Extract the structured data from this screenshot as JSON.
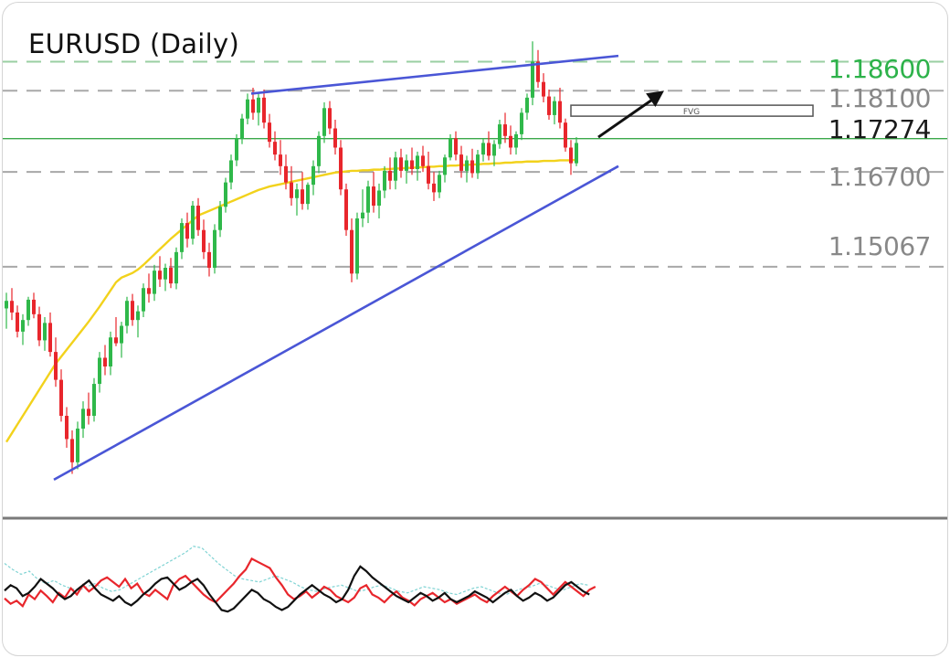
{
  "chart_data": {
    "type": "candlestick",
    "title": "EURUSD (Daily)",
    "price_range": [
      1.108,
      1.193
    ],
    "levels": [
      {
        "value": 1.186,
        "label": "1.18600",
        "color": "#2db24a",
        "style": "dashed"
      },
      {
        "value": 1.181,
        "label": "1.18100",
        "color": "#888888",
        "style": "dashed"
      },
      {
        "value": 1.17274,
        "label": "1.17274",
        "color": "#1a1a1a",
        "style": "solid"
      },
      {
        "value": 1.167,
        "label": "1.16700",
        "color": "#888888",
        "style": "dashed"
      },
      {
        "value": 1.15067,
        "label": "1.15067",
        "color": "#888888",
        "style": "dashed"
      }
    ],
    "fvg": {
      "label": "FVG",
      "top": 1.1785,
      "bottom": 1.1772
    },
    "ohlc": [
      [
        1.1435,
        1.1462,
        1.14,
        1.1448
      ],
      [
        1.1448,
        1.147,
        1.1415,
        1.1428
      ],
      [
        1.1428,
        1.144,
        1.1385,
        1.1395
      ],
      [
        1.1395,
        1.1425,
        1.1372,
        1.1415
      ],
      [
        1.1415,
        1.1455,
        1.1405,
        1.145
      ],
      [
        1.145,
        1.1462,
        1.1418,
        1.1425
      ],
      [
        1.1425,
        1.1438,
        1.137,
        1.138
      ],
      [
        1.138,
        1.142,
        1.1362,
        1.141
      ],
      [
        1.141,
        1.1428,
        1.1352,
        1.136
      ],
      [
        1.136,
        1.1385,
        1.13,
        1.1312
      ],
      [
        1.1312,
        1.133,
        1.124,
        1.125
      ],
      [
        1.125,
        1.1265,
        1.1195,
        1.121
      ],
      [
        1.121,
        1.1225,
        1.115,
        1.117
      ],
      [
        1.117,
        1.124,
        1.1158,
        1.1228
      ],
      [
        1.1228,
        1.1275,
        1.1212,
        1.1262
      ],
      [
        1.1262,
        1.129,
        1.1235,
        1.125
      ],
      [
        1.125,
        1.1315,
        1.124,
        1.1305
      ],
      [
        1.1305,
        1.136,
        1.129,
        1.135
      ],
      [
        1.135,
        1.1372,
        1.132,
        1.1335
      ],
      [
        1.1335,
        1.1395,
        1.132,
        1.1385
      ],
      [
        1.1385,
        1.142,
        1.137,
        1.1375
      ],
      [
        1.1375,
        1.1412,
        1.135,
        1.1405
      ],
      [
        1.1405,
        1.1455,
        1.1392,
        1.1448
      ],
      [
        1.1448,
        1.146,
        1.1405,
        1.1415
      ],
      [
        1.1415,
        1.144,
        1.1385,
        1.143
      ],
      [
        1.143,
        1.1478,
        1.142,
        1.147
      ],
      [
        1.147,
        1.1495,
        1.1445,
        1.146
      ],
      [
        1.146,
        1.151,
        1.1448,
        1.15
      ],
      [
        1.15,
        1.1525,
        1.1472,
        1.1485
      ],
      [
        1.1485,
        1.1512,
        1.1465,
        1.1505
      ],
      [
        1.1505,
        1.1522,
        1.147,
        1.1478
      ],
      [
        1.1478,
        1.154,
        1.1468,
        1.1532
      ],
      [
        1.1532,
        1.159,
        1.152,
        1.1582
      ],
      [
        1.1582,
        1.16,
        1.154,
        1.1555
      ],
      [
        1.1555,
        1.162,
        1.1545,
        1.1612
      ],
      [
        1.1612,
        1.1625,
        1.156,
        1.157
      ],
      [
        1.157,
        1.1588,
        1.152,
        1.1532
      ],
      [
        1.1532,
        1.1548,
        1.149,
        1.1505
      ],
      [
        1.1505,
        1.158,
        1.1495,
        1.157
      ],
      [
        1.157,
        1.162,
        1.1558,
        1.161
      ],
      [
        1.161,
        1.166,
        1.16,
        1.1652
      ],
      [
        1.1652,
        1.17,
        1.164,
        1.169
      ],
      [
        1.169,
        1.1735,
        1.168,
        1.1728
      ],
      [
        1.1728,
        1.177,
        1.1718,
        1.1762
      ],
      [
        1.1762,
        1.1805,
        1.1752,
        1.1795
      ],
      [
        1.1795,
        1.1815,
        1.176,
        1.1772
      ],
      [
        1.1772,
        1.1808,
        1.175,
        1.1798
      ],
      [
        1.1798,
        1.1812,
        1.1745,
        1.1755
      ],
      [
        1.1755,
        1.177,
        1.1712,
        1.1722
      ],
      [
        1.1722,
        1.174,
        1.169,
        1.17
      ],
      [
        1.17,
        1.1725,
        1.1665,
        1.168
      ],
      [
        1.168,
        1.17,
        1.164,
        1.1652
      ],
      [
        1.1652,
        1.168,
        1.1612,
        1.1625
      ],
      [
        1.1625,
        1.165,
        1.1595,
        1.164
      ],
      [
        1.164,
        1.167,
        1.1605,
        1.1615
      ],
      [
        1.1615,
        1.1652,
        1.1605,
        1.1648
      ],
      [
        1.1648,
        1.169,
        1.163,
        1.168
      ],
      [
        1.168,
        1.174,
        1.1668,
        1.1732
      ],
      [
        1.1732,
        1.179,
        1.172,
        1.178
      ],
      [
        1.178,
        1.1792,
        1.1735,
        1.1745
      ],
      [
        1.1745,
        1.176,
        1.17,
        1.1712
      ],
      [
        1.1712,
        1.1725,
        1.163,
        1.164
      ],
      [
        1.164,
        1.165,
        1.156,
        1.157
      ],
      [
        1.157,
        1.159,
        1.148,
        1.1495
      ],
      [
        1.1495,
        1.16,
        1.1485,
        1.159
      ],
      [
        1.159,
        1.164,
        1.1575,
        1.16
      ],
      [
        1.16,
        1.1655,
        1.1582,
        1.1645
      ],
      [
        1.1645,
        1.167,
        1.16,
        1.1612
      ],
      [
        1.1612,
        1.165,
        1.159,
        1.1638
      ],
      [
        1.1638,
        1.168,
        1.1625,
        1.1672
      ],
      [
        1.1672,
        1.1695,
        1.164,
        1.1655
      ],
      [
        1.1655,
        1.1705,
        1.164,
        1.1695
      ],
      [
        1.1695,
        1.171,
        1.166,
        1.1672
      ],
      [
        1.1672,
        1.17,
        1.165,
        1.169
      ],
      [
        1.169,
        1.1712,
        1.1665,
        1.1675
      ],
      [
        1.1675,
        1.1705,
        1.1655,
        1.1698
      ],
      [
        1.1698,
        1.1715,
        1.167,
        1.168
      ],
      [
        1.168,
        1.1705,
        1.164,
        1.165
      ],
      [
        1.165,
        1.167,
        1.162,
        1.1635
      ],
      [
        1.1635,
        1.1672,
        1.1625,
        1.1665
      ],
      [
        1.1665,
        1.17,
        1.1652,
        1.1695
      ],
      [
        1.1695,
        1.1735,
        1.169,
        1.1728
      ],
      [
        1.1728,
        1.174,
        1.169,
        1.17
      ],
      [
        1.17,
        1.1715,
        1.166,
        1.1672
      ],
      [
        1.1672,
        1.1698,
        1.1652,
        1.169
      ],
      [
        1.169,
        1.171,
        1.166,
        1.1668
      ],
      [
        1.1668,
        1.1708,
        1.1658,
        1.17
      ],
      [
        1.17,
        1.1728,
        1.1688,
        1.172
      ],
      [
        1.172,
        1.174,
        1.169,
        1.1698
      ],
      [
        1.1698,
        1.1725,
        1.168,
        1.1718
      ],
      [
        1.1718,
        1.176,
        1.171,
        1.1752
      ],
      [
        1.1752,
        1.1772,
        1.172,
        1.1732
      ],
      [
        1.1732,
        1.175,
        1.17,
        1.1712
      ],
      [
        1.1712,
        1.174,
        1.17,
        1.1735
      ],
      [
        1.1735,
        1.178,
        1.1725,
        1.1772
      ],
      [
        1.1772,
        1.1805,
        1.176,
        1.1798
      ],
      [
        1.1798,
        1.1895,
        1.1785,
        1.186
      ],
      [
        1.186,
        1.188,
        1.1815,
        1.1825
      ],
      [
        1.1825,
        1.184,
        1.179,
        1.18
      ],
      [
        1.18,
        1.1812,
        1.176,
        1.1768
      ],
      [
        1.1768,
        1.18,
        1.1752,
        1.1792
      ],
      [
        1.1792,
        1.1815,
        1.1745,
        1.1755
      ],
      [
        1.1755,
        1.1762,
        1.1705,
        1.1712
      ],
      [
        1.1712,
        1.1725,
        1.1665,
        1.1685
      ],
      [
        1.1685,
        1.173,
        1.168,
        1.172
      ]
    ],
    "sma": [
      1.1205,
      1.122,
      1.1235,
      1.125,
      1.1265,
      1.128,
      1.1295,
      1.131,
      1.1325,
      1.134,
      1.1352,
      1.1364,
      1.1376,
      1.1388,
      1.14,
      1.1412,
      1.1425,
      1.1438,
      1.1452,
      1.1466,
      1.148,
      1.1488,
      1.1492,
      1.1496,
      1.1502,
      1.151,
      1.1519,
      1.1528,
      1.1537,
      1.1546,
      1.1555,
      1.1563,
      1.1571,
      1.1579,
      1.1587,
      1.1595,
      1.1599,
      1.1603,
      1.1607,
      1.1611,
      1.1615,
      1.1619,
      1.1623,
      1.1627,
      1.1631,
      1.1635,
      1.1639,
      1.1642,
      1.1645,
      1.1647,
      1.1649,
      1.1651,
      1.1653,
      1.1655,
      1.1657,
      1.1659,
      1.1661,
      1.1663,
      1.1665,
      1.1667,
      1.1669,
      1.167,
      1.1671,
      1.1672,
      1.1672,
      1.1673,
      1.1673,
      1.1674,
      1.1674,
      1.1675,
      1.1675,
      1.1676,
      1.1676,
      1.1677,
      1.1677,
      1.1678,
      1.1678,
      1.1679,
      1.1679,
      1.168,
      1.168,
      1.1681,
      1.1681,
      1.1682,
      1.1682,
      1.1683,
      1.1683,
      1.1684,
      1.1684,
      1.1685,
      1.1685,
      1.1686,
      1.1686,
      1.1687,
      1.1687,
      1.1688,
      1.1688,
      1.1688,
      1.1689,
      1.1689,
      1.1689,
      1.169,
      1.169,
      1.169,
      1.1691
    ],
    "trendlines": [
      {
        "name": "support",
        "color": "#4a56d6",
        "from": [
          0,
          1.114
        ],
        "to": [
          103,
          1.168
        ]
      },
      {
        "name": "resistance",
        "color": "#4a56d6",
        "from": [
          36,
          1.1805
        ],
        "to": [
          103,
          1.187
        ]
      }
    ],
    "projection_arrow": {
      "color": "#111111",
      "from": [
        102,
        1.173
      ],
      "to": [
        112,
        1.181
      ]
    },
    "oscillator": {
      "red": [
        45,
        38,
        42,
        35,
        50,
        44,
        55,
        48,
        40,
        52,
        46,
        58,
        50,
        62,
        54,
        60,
        68,
        72,
        66,
        60,
        70,
        58,
        64,
        52,
        48,
        56,
        50,
        44,
        62,
        70,
        74,
        66,
        58,
        50,
        44,
        40,
        48,
        56,
        64,
        74,
        82,
        96,
        92,
        88,
        84,
        72,
        62,
        50,
        44,
        48,
        54,
        46,
        52,
        60,
        56,
        48,
        44,
        40,
        46,
        58,
        62,
        50,
        46,
        40,
        48,
        54,
        46,
        42,
        36,
        44,
        48,
        52,
        46,
        40,
        44,
        38,
        42,
        46,
        50,
        44,
        40,
        48,
        54,
        60,
        54,
        48,
        56,
        62,
        70,
        66,
        58,
        50,
        58,
        66,
        60,
        54,
        48,
        56,
        60
      ],
      "black": [
        55,
        62,
        58,
        48,
        52,
        60,
        70,
        64,
        58,
        50,
        44,
        48,
        56,
        62,
        68,
        58,
        50,
        46,
        42,
        48,
        40,
        36,
        42,
        50,
        56,
        64,
        70,
        72,
        64,
        56,
        60,
        66,
        70,
        62,
        50,
        40,
        30,
        28,
        32,
        40,
        48,
        56,
        52,
        44,
        40,
        34,
        30,
        34,
        42,
        50,
        56,
        62,
        56,
        50,
        46,
        40,
        44,
        56,
        74,
        86,
        80,
        72,
        66,
        60,
        54,
        48,
        44,
        40,
        46,
        52,
        48,
        42,
        46,
        52,
        44,
        40,
        44,
        48,
        54,
        50,
        46,
        40,
        46,
        52,
        56,
        48,
        42,
        46,
        52,
        48,
        42,
        46,
        54,
        62,
        66,
        60,
        54,
        50
      ],
      "cyan": [
        90,
        82,
        76,
        80,
        70,
        64,
        68,
        62,
        58,
        55,
        60,
        64,
        58,
        54,
        56,
        62,
        68,
        74,
        80,
        86,
        92,
        98,
        104,
        112,
        110,
        100,
        90,
        82,
        74,
        70,
        68,
        66,
        70,
        74,
        70,
        66,
        60,
        56,
        54,
        58,
        60,
        62,
        58,
        54,
        56,
        60,
        62,
        58,
        54,
        52,
        56,
        60,
        58,
        56,
        52,
        50,
        54,
        58,
        60,
        56,
        52,
        50,
        54,
        58,
        60,
        64,
        62,
        58,
        56,
        60,
        64,
        62
      ]
    }
  }
}
